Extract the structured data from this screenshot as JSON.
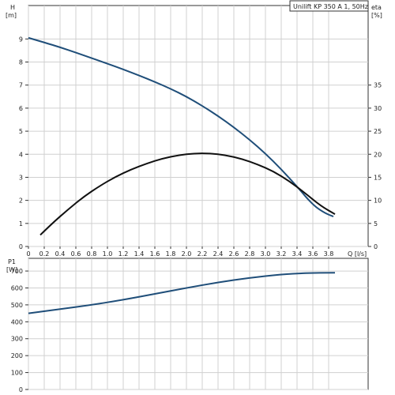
{
  "chart_data": [
    {
      "type": "line",
      "title": "Unilift KP 350 A 1, 50Hz",
      "x": {
        "label": "Q [l/s]",
        "ticks": [
          0,
          0.2,
          0.4,
          0.6,
          0.8,
          1.0,
          1.2,
          1.4,
          1.6,
          1.8,
          2.0,
          2.2,
          2.4,
          2.6,
          2.8,
          3.0,
          3.2,
          3.4,
          3.6,
          3.8
        ],
        "tick_labels": [
          "0",
          "0.2",
          "0.4",
          "0.6",
          "0.8",
          "1.0",
          "1.2",
          "1.4",
          "1.6",
          "1.8",
          "2.0",
          "2.2",
          "2.4",
          "2.6",
          "2.8",
          "3.0",
          "3.2",
          "3.4",
          "3.6",
          "3.8"
        ],
        "range": [
          0,
          4.3
        ]
      },
      "y_left": {
        "label_top": "H",
        "label_unit": "[m]",
        "ticks": [
          0,
          1,
          2,
          3,
          4,
          5,
          6,
          7,
          8,
          9
        ],
        "range": [
          0,
          10.45
        ]
      },
      "y_right": {
        "label_top": "eta",
        "label_unit": "[%]",
        "ticks": [
          0,
          5,
          10,
          15,
          20,
          25,
          30,
          35
        ],
        "range": [
          0,
          52.25
        ]
      },
      "grid": true,
      "series": [
        {
          "axis": "left",
          "color": "#1f4e79",
          "points": [
            [
              0.0,
              9.05
            ],
            [
              0.2,
              8.85
            ],
            [
              0.4,
              8.64
            ],
            [
              0.6,
              8.41
            ],
            [
              0.8,
              8.17
            ],
            [
              1.0,
              7.93
            ],
            [
              1.2,
              7.68
            ],
            [
              1.4,
              7.42
            ],
            [
              1.6,
              7.14
            ],
            [
              1.8,
              6.84
            ],
            [
              2.0,
              6.5
            ],
            [
              2.2,
              6.1
            ],
            [
              2.4,
              5.66
            ],
            [
              2.6,
              5.17
            ],
            [
              2.8,
              4.63
            ],
            [
              3.0,
              4.03
            ],
            [
              3.2,
              3.35
            ],
            [
              3.4,
              2.6
            ],
            [
              3.6,
              1.8
            ],
            [
              3.75,
              1.45
            ],
            [
              3.86,
              1.3
            ]
          ]
        },
        {
          "axis": "right",
          "color": "#111111",
          "points": [
            [
              0.15,
              2.5
            ],
            [
              0.3,
              5.0
            ],
            [
              0.5,
              8.0
            ],
            [
              0.7,
              10.8
            ],
            [
              0.9,
              13.1
            ],
            [
              1.1,
              15.1
            ],
            [
              1.3,
              16.7
            ],
            [
              1.5,
              18.0
            ],
            [
              1.7,
              19.1
            ],
            [
              1.9,
              19.8
            ],
            [
              2.1,
              20.2
            ],
            [
              2.3,
              20.2
            ],
            [
              2.5,
              19.8
            ],
            [
              2.7,
              19.0
            ],
            [
              2.9,
              17.8
            ],
            [
              3.1,
              16.3
            ],
            [
              3.3,
              14.2
            ],
            [
              3.5,
              11.6
            ],
            [
              3.7,
              8.8
            ],
            [
              3.88,
              7.0
            ]
          ]
        }
      ]
    },
    {
      "type": "line",
      "x": {
        "ticks": [
          0,
          0.2,
          0.4,
          0.6,
          0.8,
          1.0,
          1.2,
          1.4,
          1.6,
          1.8,
          2.0,
          2.2,
          2.4,
          2.6,
          2.8,
          3.0,
          3.2,
          3.4,
          3.6,
          3.8
        ],
        "range": [
          0,
          4.3
        ]
      },
      "y_left": {
        "label_top": "P1",
        "label_unit": "[W]",
        "ticks": [
          0,
          100,
          200,
          300,
          400,
          500,
          600,
          700
        ],
        "range": [
          0,
          775
        ]
      },
      "grid": true,
      "series": [
        {
          "axis": "left",
          "color": "#1f4e79",
          "points": [
            [
              0.0,
              450
            ],
            [
              0.4,
              475
            ],
            [
              0.8,
              500
            ],
            [
              1.2,
              530
            ],
            [
              1.6,
              565
            ],
            [
              2.0,
              600
            ],
            [
              2.4,
              633
            ],
            [
              2.8,
              660
            ],
            [
              3.2,
              680
            ],
            [
              3.5,
              688
            ],
            [
              3.88,
              690
            ]
          ]
        }
      ]
    }
  ]
}
